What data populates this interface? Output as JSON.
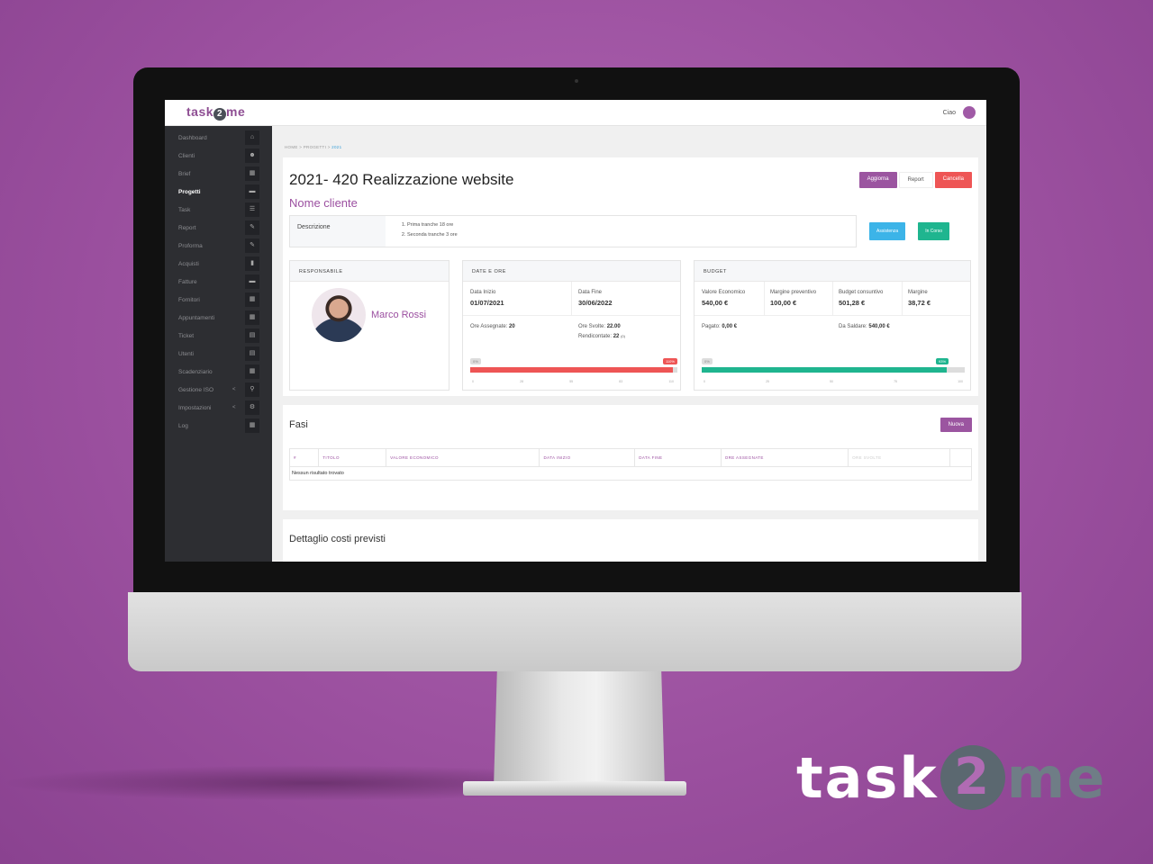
{
  "app": {
    "logo": "task2me",
    "greeting": "Ciao"
  },
  "sidebar": {
    "items": [
      {
        "label": "Dashboard",
        "icon": "home-icon",
        "glyph": "⌂"
      },
      {
        "label": "Clienti",
        "icon": "users-icon",
        "glyph": "☻"
      },
      {
        "label": "Brief",
        "icon": "table-icon",
        "glyph": "▦"
      },
      {
        "label": "Progetti",
        "icon": "folder-icon",
        "glyph": "▬",
        "active": true
      },
      {
        "label": "Task",
        "icon": "list-icon",
        "glyph": "☰"
      },
      {
        "label": "Report",
        "icon": "edit-icon",
        "glyph": "✎"
      },
      {
        "label": "Proforma",
        "icon": "edit-icon",
        "glyph": "✎"
      },
      {
        "label": "Acquisti",
        "icon": "file-icon",
        "glyph": "▮"
      },
      {
        "label": "Fatture",
        "icon": "folder-icon",
        "glyph": "▬"
      },
      {
        "label": "Fornitori",
        "icon": "table-icon",
        "glyph": "▦"
      },
      {
        "label": "Appuntamenti",
        "icon": "calendar-icon",
        "glyph": "▦"
      },
      {
        "label": "Ticket",
        "icon": "ticket-icon",
        "glyph": "▤"
      },
      {
        "label": "Utenti",
        "icon": "user-list-icon",
        "glyph": "▤"
      },
      {
        "label": "Scadenziario",
        "icon": "calendar-icon",
        "glyph": "▦"
      },
      {
        "label": "Gestione ISO",
        "icon": "sitemap-icon",
        "glyph": "⚲",
        "chevron": "<"
      },
      {
        "label": "Impostazioni",
        "icon": "gear-icon",
        "glyph": "⚙",
        "chevron": "<"
      },
      {
        "label": "Log",
        "icon": "table-icon",
        "glyph": "▦"
      }
    ]
  },
  "breadcrumb": [
    "HOME",
    "PROGETTI",
    "2021"
  ],
  "project": {
    "title": "2021- 420 Realizzazione website",
    "client": "Nome cliente",
    "buttons": {
      "update": "Aggiorna",
      "report": "Report",
      "delete": "Cancella"
    },
    "description_label": "Descrizione",
    "description": [
      "Prima tranche 18 ore",
      "Seconda tranche 3 ore"
    ],
    "badges": {
      "type": "Assistenza",
      "status": "In Corso"
    }
  },
  "colors": {
    "purple": "#9b55a0",
    "red": "#ee5555",
    "blue": "#3cb4e8",
    "green": "#1fb58f"
  },
  "responsabile": {
    "header": "RESPONSABILE",
    "name": "Marco Rossi"
  },
  "dates": {
    "header": "DATE E ORE",
    "start_label": "Data Inizio",
    "start": "01/07/2021",
    "end_label": "Data Fine",
    "end": "30/06/2022",
    "assigned_label": "Ore Assegnate:",
    "assigned": "20",
    "done_label": "Ore Svolte:",
    "done": "22.00",
    "reported_label": "Rendicontate:",
    "reported": "22",
    "reported_note": "(0)",
    "progress": {
      "min_label": "0%",
      "value_label": "110%",
      "value": 110,
      "max": 110,
      "ticks": [
        "0",
        "28",
        "55",
        "83",
        "110"
      ]
    }
  },
  "budget": {
    "header": "BUDGET",
    "cols": [
      {
        "label": "Valore Economico",
        "value": "540,00 €"
      },
      {
        "label": "Margine preventivo",
        "value": "100,00 €"
      },
      {
        "label": "Budget consuntivo",
        "value": "501,28 €"
      },
      {
        "label": "Margine",
        "value": "38,72 €"
      }
    ],
    "paid_label": "Pagato:",
    "paid": "0,00 €",
    "due_label": "Da Saldare:",
    "due": "540,00 €",
    "progress": {
      "min_label": "0%",
      "value_label": "93%",
      "value": 93,
      "max": 100,
      "ticks": [
        "0",
        "25",
        "50",
        "75",
        "100"
      ]
    }
  },
  "fasi": {
    "title": "Fasi",
    "new_button": "Nuova",
    "columns": [
      "#",
      "TITOLO",
      "VALORE ECONOMICO",
      "DATA INIZIO",
      "DATA FINE",
      "ORE ASSEGNATE",
      "ORE SVOLTE",
      ""
    ],
    "empty": "Nessun risultato trovato"
  },
  "costi": {
    "title": "Dettaglio costi previsti"
  }
}
